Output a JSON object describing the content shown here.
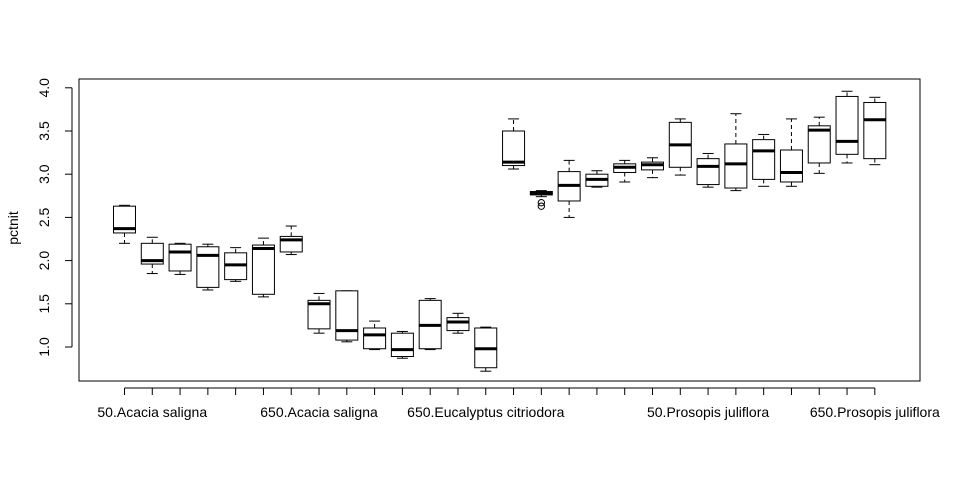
{
  "chart_data": {
    "type": "boxplot",
    "title": "",
    "xlabel": "",
    "ylabel": "pctnit",
    "ylim": [
      0.7,
      4.05
    ],
    "yticks": [
      "1.0",
      "1.5",
      "2.0",
      "2.5",
      "3.0",
      "3.5",
      "4.0"
    ],
    "xtick_labels": [
      "50.Acacia saligna",
      "650.Acacia saligna",
      "650.Eucalyptus citriodora",
      "50.Prosopis juliflora",
      "650.Prosopis juliflora"
    ],
    "xtick_label_positions": [
      1,
      7,
      13,
      21,
      27
    ],
    "boxes": [
      {
        "min": 2.2,
        "q1": 2.32,
        "median": 2.37,
        "q3": 2.63,
        "max": 2.64,
        "outliers": []
      },
      {
        "min": 1.85,
        "q1": 1.96,
        "median": 2.0,
        "q3": 2.2,
        "max": 2.27,
        "outliers": []
      },
      {
        "min": 1.84,
        "q1": 1.88,
        "median": 2.1,
        "q3": 2.19,
        "max": 2.2,
        "outliers": []
      },
      {
        "min": 1.66,
        "q1": 1.69,
        "median": 2.06,
        "q3": 2.16,
        "max": 2.19,
        "outliers": []
      },
      {
        "min": 1.76,
        "q1": 1.78,
        "median": 1.95,
        "q3": 2.09,
        "max": 2.15,
        "outliers": []
      },
      {
        "min": 1.58,
        "q1": 1.61,
        "median": 2.14,
        "q3": 2.18,
        "max": 2.26,
        "outliers": []
      },
      {
        "min": 2.07,
        "q1": 2.1,
        "median": 2.24,
        "q3": 2.28,
        "max": 2.4,
        "outliers": []
      },
      {
        "min": 1.16,
        "q1": 1.21,
        "median": 1.5,
        "q3": 1.54,
        "max": 1.62,
        "outliers": []
      },
      {
        "min": 1.06,
        "q1": 1.08,
        "median": 1.19,
        "q3": 1.65,
        "max": 1.65,
        "outliers": []
      },
      {
        "min": 0.97,
        "q1": 0.98,
        "median": 1.14,
        "q3": 1.22,
        "max": 1.3,
        "outliers": []
      },
      {
        "min": 0.87,
        "q1": 0.89,
        "median": 0.97,
        "q3": 1.16,
        "max": 1.18,
        "outliers": []
      },
      {
        "min": 0.97,
        "q1": 0.98,
        "median": 1.25,
        "q3": 1.54,
        "max": 1.56,
        "outliers": []
      },
      {
        "min": 1.16,
        "q1": 1.19,
        "median": 1.29,
        "q3": 1.34,
        "max": 1.39,
        "outliers": []
      },
      {
        "min": 0.72,
        "q1": 0.76,
        "median": 0.98,
        "q3": 1.22,
        "max": 1.23,
        "outliers": []
      },
      {
        "min": 3.06,
        "q1": 3.1,
        "median": 3.14,
        "q3": 3.5,
        "max": 3.64,
        "outliers": []
      },
      {
        "min": 2.74,
        "q1": 2.76,
        "median": 2.78,
        "q3": 2.8,
        "max": 2.81,
        "outliers": [
          2.67,
          2.63
        ]
      },
      {
        "min": 2.5,
        "q1": 2.69,
        "median": 2.87,
        "q3": 3.03,
        "max": 3.16,
        "outliers": []
      },
      {
        "min": 2.85,
        "q1": 2.86,
        "median": 2.94,
        "q3": 3.0,
        "max": 3.04,
        "outliers": []
      },
      {
        "min": 2.91,
        "q1": 3.02,
        "median": 3.08,
        "q3": 3.12,
        "max": 3.16,
        "outliers": []
      },
      {
        "min": 2.96,
        "q1": 3.05,
        "median": 3.11,
        "q3": 3.14,
        "max": 3.19,
        "outliers": []
      },
      {
        "min": 2.99,
        "q1": 3.08,
        "median": 3.34,
        "q3": 3.6,
        "max": 3.64,
        "outliers": []
      },
      {
        "min": 2.85,
        "q1": 2.88,
        "median": 3.09,
        "q3": 3.18,
        "max": 3.24,
        "outliers": []
      },
      {
        "min": 2.81,
        "q1": 2.84,
        "median": 3.12,
        "q3": 3.35,
        "max": 3.7,
        "outliers": []
      },
      {
        "min": 2.86,
        "q1": 2.94,
        "median": 3.27,
        "q3": 3.4,
        "max": 3.46,
        "outliers": []
      },
      {
        "min": 2.86,
        "q1": 2.91,
        "median": 3.02,
        "q3": 3.28,
        "max": 3.64,
        "outliers": []
      },
      {
        "min": 3.01,
        "q1": 3.13,
        "median": 3.51,
        "q3": 3.56,
        "max": 3.66,
        "outliers": []
      },
      {
        "min": 3.13,
        "q1": 3.23,
        "median": 3.38,
        "q3": 3.9,
        "max": 3.96,
        "outliers": []
      },
      {
        "min": 3.11,
        "q1": 3.18,
        "median": 3.63,
        "q3": 3.83,
        "max": 3.89,
        "outliers": []
      }
    ],
    "grid": false,
    "legend": false
  }
}
